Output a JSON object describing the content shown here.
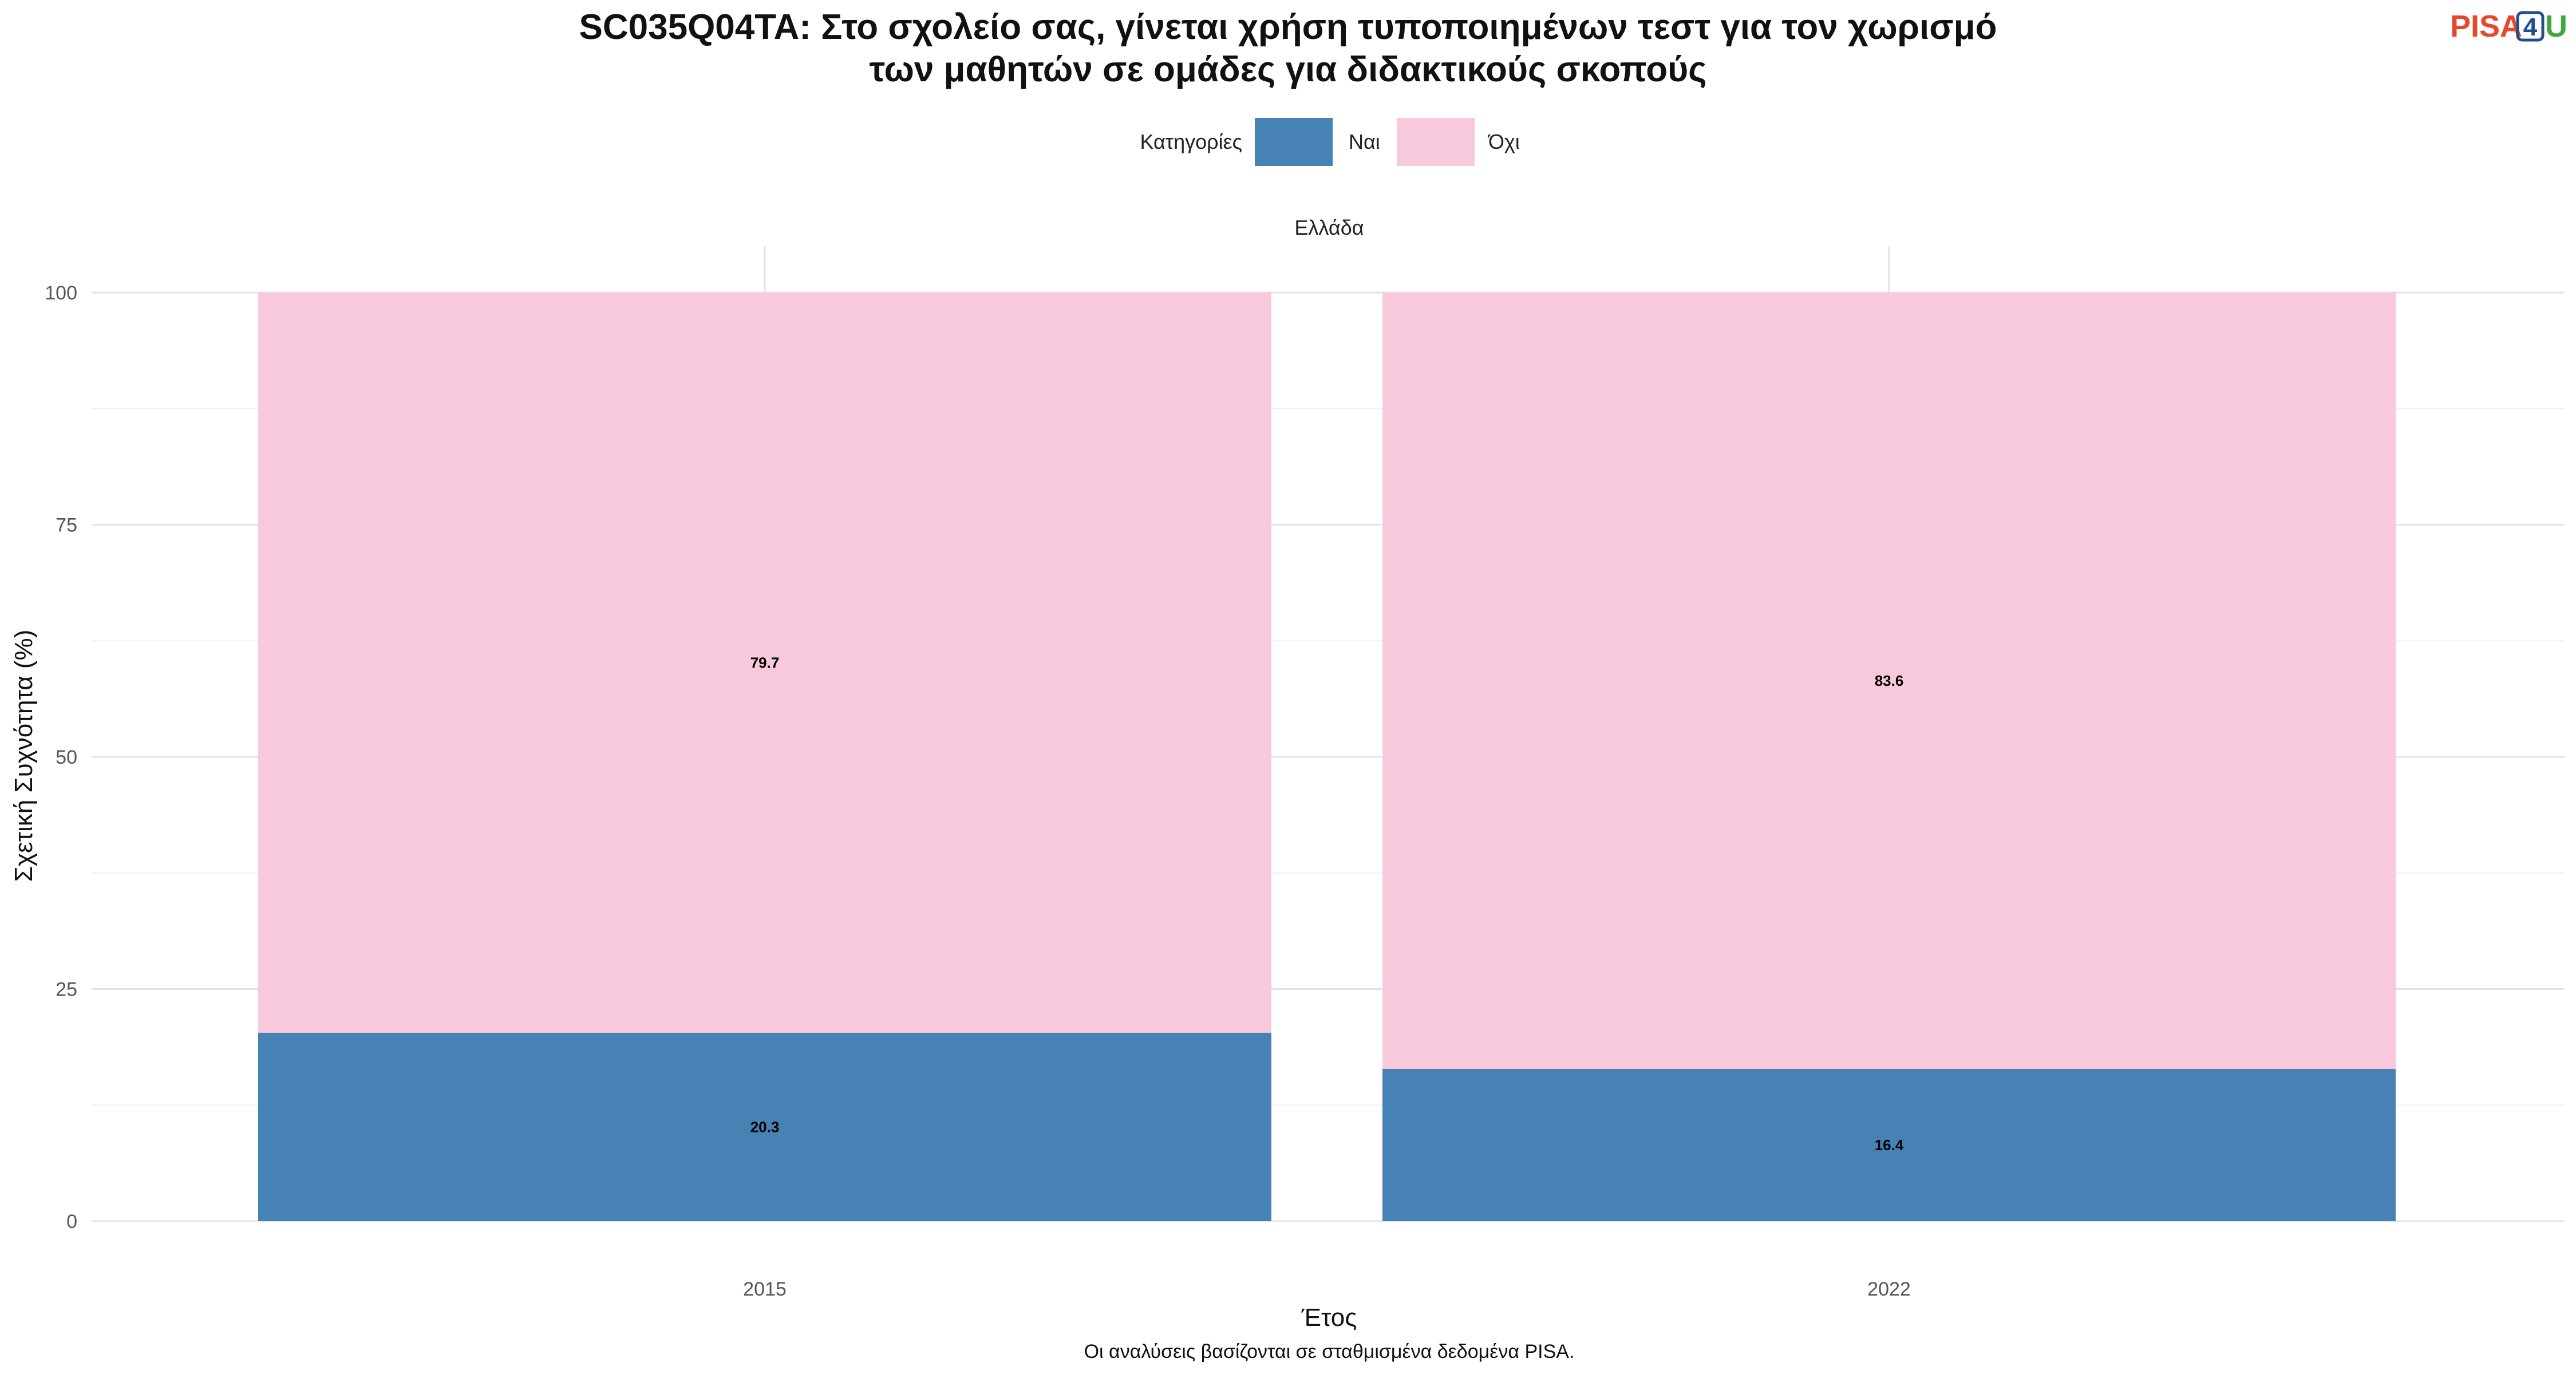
{
  "chart_data": {
    "type": "bar",
    "stacked": true,
    "title_lines": [
      "SC035Q04TA: Στο σχολείο σας, γίνεται χρήση τυποποιημένων τεστ για τον χωρισμό",
      "των μαθητών σε ομάδες για διδακτικούς σκοπούς"
    ],
    "facet": "Ελλάδα",
    "xlabel": "Έτος",
    "ylabel": "Σχετική Συχνότητα (%)",
    "caption": "Οι αναλύσεις βασίζονται σε σταθμισμένα δεδομένα PISA.",
    "categories": [
      "2015",
      "2022"
    ],
    "series": [
      {
        "name": "Ναι",
        "values": [
          20.3,
          16.4
        ],
        "color": "#4682B4"
      },
      {
        "name": "Όχι",
        "values": [
          79.7,
          83.6
        ],
        "color": "#F8C8DC"
      }
    ],
    "ylim": [
      0,
      100
    ],
    "yticks": [
      0,
      25,
      50,
      75,
      100
    ],
    "legend": {
      "title": "Κατηγορίες",
      "position": "top"
    },
    "grid": true
  },
  "logo": {
    "part1": "PISA",
    "part2": "4",
    "part3": "U",
    "color1": "#E8472B",
    "color2": "#1F4E8C",
    "color3": "#3DAA3D"
  }
}
